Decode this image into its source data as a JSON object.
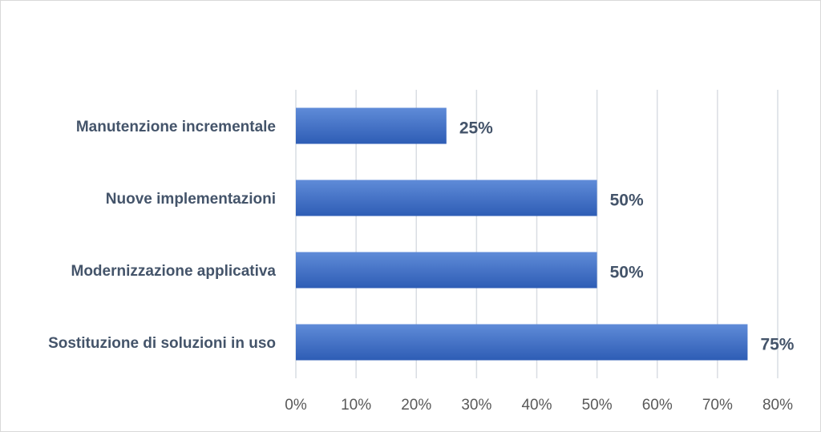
{
  "chart_data": {
    "type": "hbar",
    "categories": [
      "Manutenzione incrementale",
      "Nuove implementazioni",
      "Modernizzazione applicativa",
      "Sostituzione di soluzioni in uso"
    ],
    "values": [
      25,
      50,
      50,
      75
    ],
    "value_labels": [
      "25%",
      "50%",
      "50%",
      "75%"
    ],
    "color": "#4472c4",
    "xlim": [
      0,
      80
    ],
    "xticks": [
      {
        "value": 0,
        "label": "0%"
      },
      {
        "value": 10,
        "label": "10%"
      },
      {
        "value": 20,
        "label": "20%"
      },
      {
        "value": 30,
        "label": "30%"
      },
      {
        "value": 40,
        "label": "40%"
      },
      {
        "value": 50,
        "label": "50%"
      },
      {
        "value": 60,
        "label": "60%"
      },
      {
        "value": 70,
        "label": "70%"
      },
      {
        "value": 80,
        "label": "80%"
      }
    ],
    "grid": true
  }
}
